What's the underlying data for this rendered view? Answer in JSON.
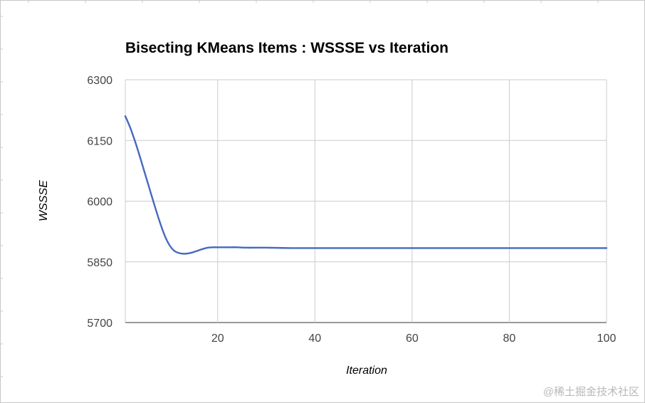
{
  "chart_data": {
    "type": "line",
    "title": "Bisecting KMeans Items : WSSSE vs Iteration",
    "xlabel": "Iteration",
    "ylabel": "WSSSE",
    "xlim": [
      1,
      100
    ],
    "ylim": [
      5700,
      6300
    ],
    "xticks": [
      20,
      40,
      60,
      80,
      100
    ],
    "yticks": [
      5700,
      5850,
      6000,
      6150,
      6300
    ],
    "grid": true,
    "series": [
      {
        "color": "#4569c0",
        "x": [
          1,
          2,
          3,
          4,
          5,
          6,
          7,
          8,
          9,
          10,
          11,
          12,
          13,
          14,
          15,
          16,
          17,
          18,
          19,
          20,
          22,
          24,
          26,
          30,
          35,
          40,
          50,
          60,
          70,
          80,
          90,
          100
        ],
        "y": [
          6210,
          6182,
          6148,
          6110,
          6070,
          6030,
          5990,
          5952,
          5918,
          5893,
          5878,
          5872,
          5870,
          5871,
          5874,
          5878,
          5882,
          5885,
          5886,
          5886,
          5886,
          5886,
          5885,
          5885,
          5884,
          5884,
          5884,
          5884,
          5884,
          5884,
          5884,
          5884
        ]
      }
    ]
  },
  "watermark": "@稀土掘金技术社区"
}
